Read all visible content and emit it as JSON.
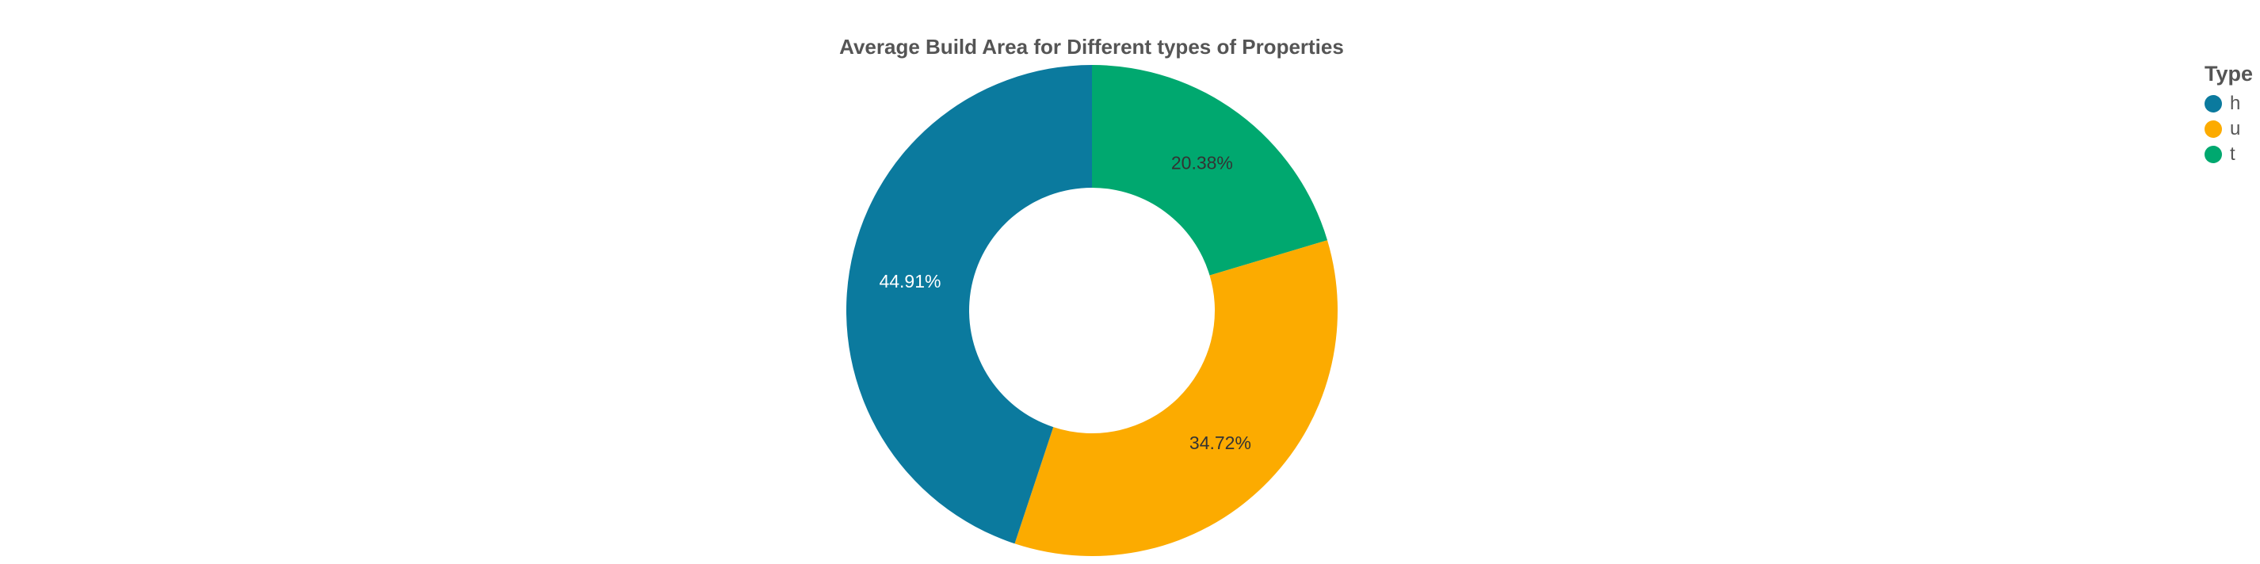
{
  "chart_data": {
    "type": "pie",
    "title": "Average Build Area for Different types of Properties",
    "hole": 0.5,
    "direction": "clockwise",
    "rotation_start": "12 o'clock",
    "slices": [
      {
        "name": "t",
        "value": 20.38,
        "label": "20.38%",
        "color": "#00a86f",
        "label_color": "#333333"
      },
      {
        "name": "u",
        "value": 34.72,
        "label": "34.72%",
        "color": "#fcab00",
        "label_color": "#333333"
      },
      {
        "name": "h",
        "value": 44.91,
        "label": "44.91%",
        "color": "#0b7a9e",
        "label_color": "#ffffff"
      }
    ],
    "legend": {
      "title": "Type",
      "placement": "top-right",
      "items": [
        {
          "label": "h",
          "color": "#0b7a9e"
        },
        {
          "label": "u",
          "color": "#fcab00"
        },
        {
          "label": "t",
          "color": "#00a86f"
        }
      ]
    }
  }
}
